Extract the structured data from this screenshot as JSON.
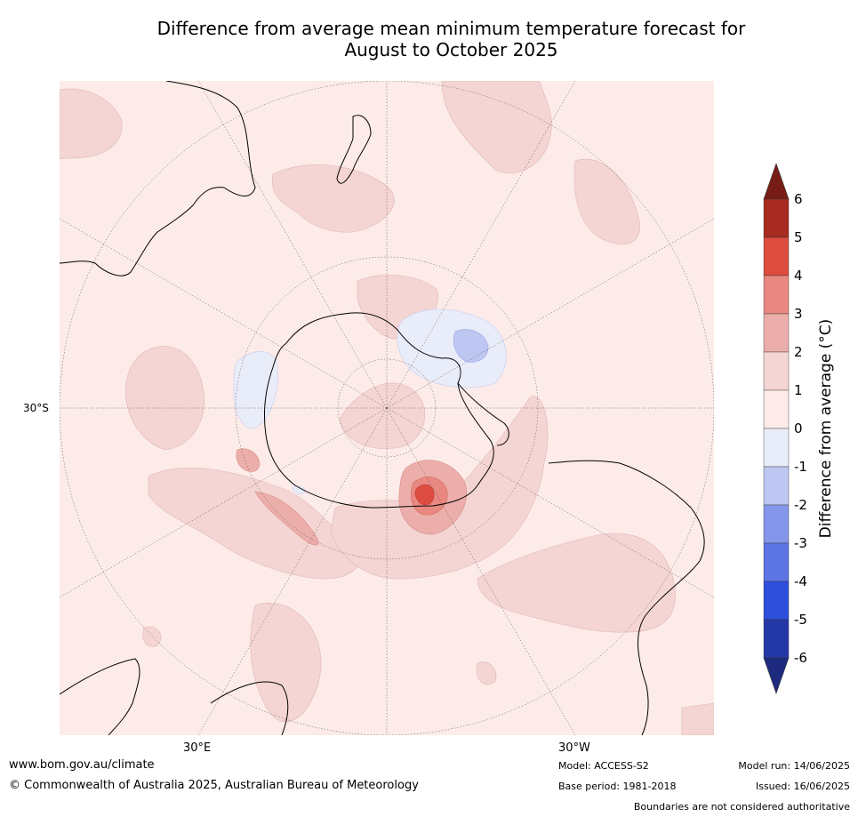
{
  "title_line1": "Difference from average mean minimum temperature forecast for",
  "title_line2": "August to October 2025",
  "map": {
    "projection": "south polar stereographic",
    "lat_label": "30°S",
    "lon_labels": [
      "30°E",
      "30°W"
    ],
    "background_color": "#fcebe8",
    "coastline_color": "#000000"
  },
  "colorbar": {
    "axis_label": "Difference from average (°C)",
    "ticks": [
      "6",
      "5",
      "4",
      "3",
      "2",
      "1",
      "0",
      "-1",
      "-2",
      "-3",
      "-4",
      "-5",
      "-6"
    ],
    "bins": [
      {
        "range": "5 to 6",
        "color": "#a72b20"
      },
      {
        "range": "4 to 5",
        "color": "#dc4c3f"
      },
      {
        "range": "3 to 4",
        "color": "#e98781"
      },
      {
        "range": "2 to 3",
        "color": "#ecaeaa"
      },
      {
        "range": "1 to 2",
        "color": "#f4d5d3"
      },
      {
        "range": "0 to 1",
        "color": "#fcebe8"
      },
      {
        "range": "-1 to 0",
        "color": "#e9ecf9"
      },
      {
        "range": "-2 to -1",
        "color": "#bdc7f1"
      },
      {
        "range": "-3 to -2",
        "color": "#8396ea"
      },
      {
        "range": "-4 to -3",
        "color": "#5c74e4"
      },
      {
        "range": "-5 to -4",
        "color": "#2f4edc"
      },
      {
        "range": "-6 to -5",
        "color": "#2538a8"
      }
    ],
    "over_color": "#781d16",
    "under_color": "#1e2a7d"
  },
  "footer": {
    "url": "www.bom.gov.au/climate",
    "copyright": "© Commonwealth of Australia 2025, Australian Bureau of Meteorology",
    "model": "Model: ACCESS-S2",
    "base_period": "Base period: 1981-2018",
    "model_run": "Model run: 14/06/2025",
    "issued": "Issued: 16/06/2025",
    "disclaimer": "Boundaries are not considered authoritative"
  }
}
